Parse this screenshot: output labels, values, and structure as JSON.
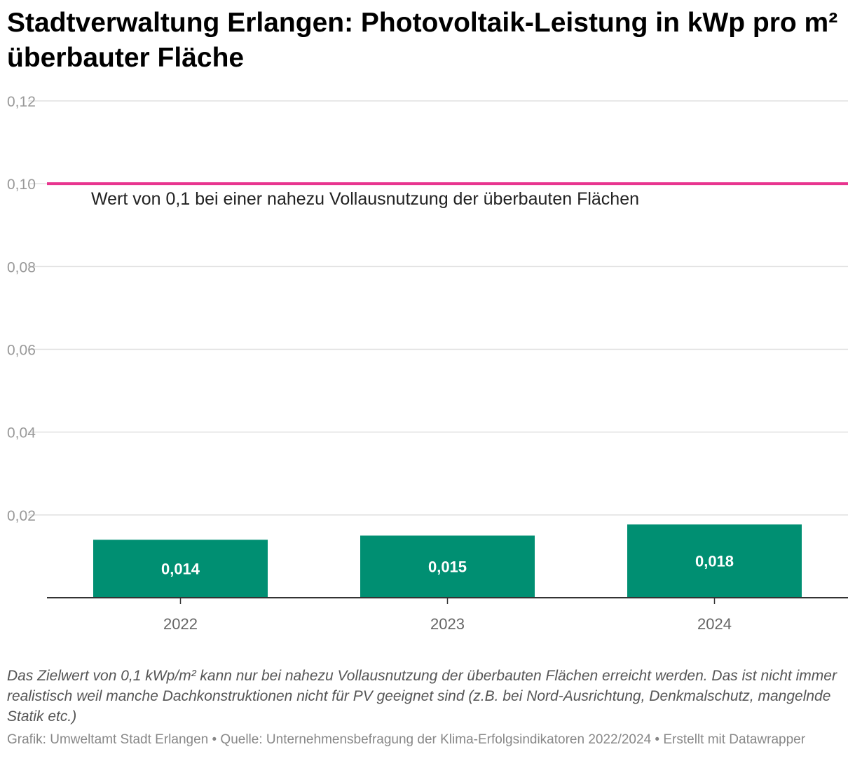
{
  "title": "Stadtverwaltung Erlangen: Photovoltaik-Leistung in kWp pro m² überbauter Fläche",
  "note": "Das Zielwert von 0,1 kWp/m² kann nur bei nahezu Vollausnutzung der überbauten Flächen erreicht werden. Das ist nicht immer realistisch weil manche Dachkonstruktionen nicht für PV geeignet sind (z.B. bei Nord-Ausrichtung, Denkmalschutz, mangelnde Statik etc.)",
  "footer": "Grafik: Umweltamt Stadt Erlangen • Quelle: Unternehmensbefragung der Klima-Erfolgsindikatoren 2022/2024 • Erstellt mit Datawrapper",
  "colors": {
    "bar": "#008f72",
    "reference_line": "#e8358f",
    "grid": "#e0e0e0",
    "axis": "#333333",
    "tick_label": "#999999",
    "category_label": "#666666"
  },
  "chart_data": {
    "type": "bar",
    "categories": [
      "2022",
      "2023",
      "2024"
    ],
    "values": [
      0.014,
      0.015,
      0.0177
    ],
    "value_labels": [
      "0,014",
      "0,015",
      "0,018"
    ],
    "ylim": [
      0,
      0.12
    ],
    "yticks": [
      0.02,
      0.04,
      0.06,
      0.08,
      0.1,
      0.12
    ],
    "ytick_labels": [
      "0,02",
      "0,04",
      "0,06",
      "0,08",
      "0,10",
      "0,12"
    ],
    "grid": true,
    "legend": "none",
    "reference_line": {
      "value": 0.1,
      "label": "Wert von 0,1 bei einer nahezu Vollausnutzung der überbauten Flächen"
    }
  }
}
